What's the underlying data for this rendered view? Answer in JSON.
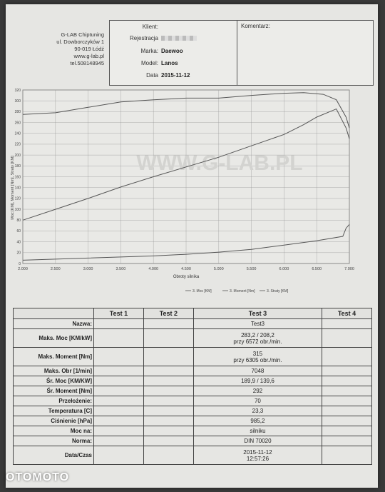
{
  "company": {
    "name": "G-LAB Chiptuning",
    "street": "ul. Dowborczyków 1",
    "city": "90-019 Łódź",
    "web": "www.g-lab.pl",
    "phone": "tel.508148945"
  },
  "client": {
    "client_label": "Klient:",
    "registration_label": "Rejestracja",
    "make_label": "Marka:",
    "make": "Daewoo",
    "model_label": "Model:",
    "model": "Lanos",
    "date_label": "Data",
    "date": "2015-11-12"
  },
  "comment_label": "Komentarz:",
  "chart_data": {
    "type": "line",
    "xlabel": "Obroty silnika",
    "x_ticks": [
      "2.000",
      "2.500",
      "3.000",
      "3.500",
      "4.000",
      "4.500",
      "5.000",
      "5.500",
      "6.000",
      "6.500",
      "7.000"
    ],
    "y_ticks": [
      "0",
      "20",
      "40",
      "60",
      "80",
      "100",
      "120",
      "140",
      "160",
      "180",
      "200",
      "220",
      "240",
      "260",
      "280",
      "300",
      "320"
    ],
    "xlim": [
      2000,
      7000
    ],
    "ylim": [
      0,
      320
    ],
    "ylabel": "Moc [KM], Moment [Nm], Straty [KM]",
    "watermark": "WWW.G-LAB.PL",
    "series": [
      {
        "name": "3. Moc [KM]",
        "x": [
          2000,
          2500,
          3000,
          3500,
          4000,
          4500,
          5000,
          5500,
          6000,
          6300,
          6500,
          6800,
          6950,
          7000
        ],
        "y": [
          80,
          100,
          120,
          141,
          160,
          178,
          196,
          217,
          238,
          256,
          270,
          285,
          250,
          230
        ]
      },
      {
        "name": "3. Moment [Nm]",
        "x": [
          2000,
          2500,
          3000,
          3500,
          4000,
          4500,
          5000,
          5500,
          6000,
          6300,
          6600,
          6800,
          6950,
          7000
        ],
        "y": [
          275,
          278,
          288,
          298,
          302,
          305,
          305,
          310,
          314,
          315,
          312,
          302,
          270,
          250
        ]
      },
      {
        "name": "3. Straty [KM]",
        "x": [
          2000,
          2500,
          3000,
          3500,
          4000,
          4500,
          5000,
          5500,
          6000,
          6500,
          6900,
          6950,
          7000
        ],
        "y": [
          6,
          8,
          10,
          12,
          14,
          17,
          21,
          26,
          34,
          42,
          50,
          65,
          72
        ]
      }
    ],
    "legend": [
      "3. Moc [KM]",
      "3. Moment [Nm]",
      "3. Straty [KM]"
    ]
  },
  "results": {
    "headers": [
      "",
      "Test 1",
      "Test 2",
      "Test 3",
      "Test 4"
    ],
    "rows": [
      {
        "label": "Nazwa:",
        "value": "Test3"
      },
      {
        "label": "Maks. Moc [KM/kW]",
        "value": "283,2 / 208,2",
        "value2": "przy 6572 obr./min."
      },
      {
        "label": "Maks. Moment [Nm]",
        "value": "315",
        "value2": "przy 6305 obr./min."
      },
      {
        "label": "Maks. Obr [1/min]",
        "value": "7048"
      },
      {
        "label": "Śr. Moc [KM/KW]",
        "value": "189,9 / 139,6"
      },
      {
        "label": "Śr. Moment [Nm]",
        "value": "292"
      },
      {
        "label": "Przełożenie:",
        "value": "70"
      },
      {
        "label": "Temperatura [C]",
        "value": "23,3"
      },
      {
        "label": "Ciśnienie [hPa]",
        "value": "985,2"
      },
      {
        "label": "Moc na:",
        "value": "silniku"
      },
      {
        "label": "Norma:",
        "value": "DIN 70020"
      },
      {
        "label": "Data/Czas",
        "value": "2015-11-12",
        "value2": "12:57:26"
      }
    ]
  },
  "watermark": "OTOMOTO"
}
